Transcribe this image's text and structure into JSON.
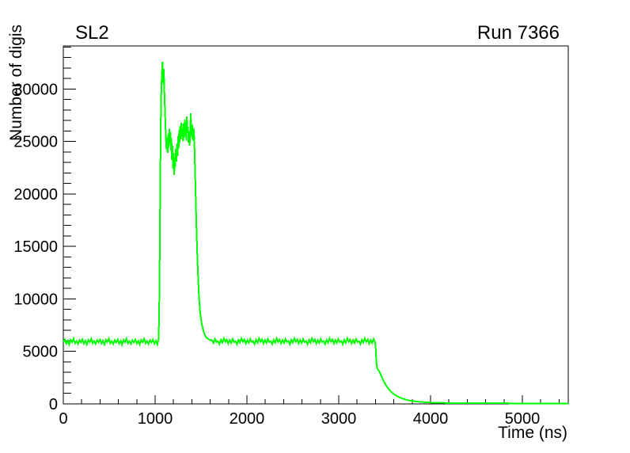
{
  "chart_data": {
    "type": "line",
    "title": "SL2",
    "annotation": "Run 7366",
    "xlabel": "Time (ns)",
    "ylabel": "Number of digis",
    "xlim": [
      0,
      5500
    ],
    "ylim": [
      0,
      34100
    ],
    "x_major_ticks": [
      0,
      1000,
      2000,
      3000,
      4000,
      5000
    ],
    "x_minor_step": 200,
    "y_major_ticks": [
      0,
      5000,
      10000,
      15000,
      20000,
      25000,
      30000
    ],
    "y_minor_step": 1000,
    "grid": false,
    "legend": "none",
    "frame_box": true,
    "line_color": "#00ff00",
    "line_width": 2,
    "axis_color": "#000000",
    "background_color": "#ffffff",
    "series_name": "number-of-digis-vs-time",
    "baseline_level": 5950,
    "peak_value": 32600,
    "segments": [
      {
        "kind": "noise",
        "t_start": 0,
        "t_end": 1032,
        "step": 16,
        "level": 5950,
        "amp": 300,
        "pattern": [
          -0.3,
          0.6,
          -0.7,
          0.2,
          -1.0,
          0.5,
          -0.2,
          0.9,
          -0.6,
          0.1,
          -0.8,
          0.4
        ]
      },
      {
        "kind": "points",
        "points": [
          [
            1038,
            6200
          ],
          [
            1044,
            8500
          ],
          [
            1050,
            14000
          ],
          [
            1056,
            21000
          ],
          [
            1062,
            27000
          ],
          [
            1068,
            30200
          ],
          [
            1074,
            31500
          ],
          [
            1080,
            32600
          ],
          [
            1085,
            31200
          ],
          [
            1090,
            30400
          ],
          [
            1095,
            31900
          ],
          [
            1100,
            30000
          ],
          [
            1106,
            28300
          ],
          [
            1112,
            26700
          ],
          [
            1118,
            25100
          ],
          [
            1124,
            24200
          ],
          [
            1130,
            25400
          ],
          [
            1136,
            23900
          ],
          [
            1142,
            25700
          ],
          [
            1148,
            24400
          ],
          [
            1154,
            26200
          ],
          [
            1160,
            24800
          ],
          [
            1166,
            25900
          ],
          [
            1172,
            24100
          ],
          [
            1178,
            25300
          ],
          [
            1184,
            23200
          ],
          [
            1190,
            24600
          ],
          [
            1196,
            22400
          ],
          [
            1202,
            23900
          ],
          [
            1208,
            21800
          ],
          [
            1214,
            23500
          ],
          [
            1220,
            22600
          ],
          [
            1226,
            24300
          ],
          [
            1232,
            23100
          ],
          [
            1238,
            24800
          ],
          [
            1244,
            23600
          ],
          [
            1250,
            25500
          ],
          [
            1256,
            24300
          ],
          [
            1262,
            26100
          ],
          [
            1268,
            24900
          ],
          [
            1274,
            26500
          ],
          [
            1280,
            25200
          ],
          [
            1286,
            26800
          ],
          [
            1292,
            25500
          ],
          [
            1298,
            26300
          ],
          [
            1304,
            25000
          ],
          [
            1310,
            26700
          ],
          [
            1316,
            25300
          ],
          [
            1322,
            27100
          ],
          [
            1328,
            25600
          ],
          [
            1334,
            26900
          ],
          [
            1340,
            25100
          ],
          [
            1346,
            27400
          ],
          [
            1352,
            25800
          ],
          [
            1358,
            26400
          ],
          [
            1364,
            24900
          ],
          [
            1370,
            26000
          ],
          [
            1376,
            24600
          ],
          [
            1382,
            25700
          ],
          [
            1388,
            27700
          ],
          [
            1394,
            26200
          ],
          [
            1400,
            25400
          ],
          [
            1406,
            26600
          ],
          [
            1412,
            25100
          ],
          [
            1418,
            26300
          ],
          [
            1424,
            25700
          ]
        ]
      },
      {
        "kind": "points",
        "points": [
          [
            1430,
            24000
          ],
          [
            1436,
            21800
          ],
          [
            1442,
            19600
          ],
          [
            1448,
            17500
          ],
          [
            1454,
            15600
          ],
          [
            1460,
            13900
          ],
          [
            1466,
            12500
          ],
          [
            1472,
            11300
          ],
          [
            1478,
            10300
          ],
          [
            1484,
            9500
          ],
          [
            1490,
            8800
          ],
          [
            1498,
            8200
          ],
          [
            1506,
            7700
          ],
          [
            1516,
            7300
          ],
          [
            1526,
            6950
          ],
          [
            1538,
            6650
          ],
          [
            1552,
            6400
          ],
          [
            1568,
            6250
          ],
          [
            1586,
            6150
          ],
          [
            1604,
            6050
          ]
        ]
      },
      {
        "kind": "noise",
        "t_start": 1620,
        "t_end": 3396,
        "step": 16,
        "level": 5950,
        "amp": 300,
        "pattern": [
          0.4,
          -0.5,
          0.8,
          -0.2,
          0.1,
          -0.9,
          0.5,
          -0.4,
          1.0,
          -0.1,
          0.6,
          -0.7
        ]
      },
      {
        "kind": "points",
        "points": [
          [
            3402,
            5500
          ],
          [
            3406,
            4700
          ],
          [
            3410,
            4000
          ],
          [
            3415,
            3550
          ],
          [
            3421,
            3350
          ],
          [
            3428,
            3250
          ],
          [
            3436,
            3150
          ],
          [
            3444,
            3050
          ],
          [
            3452,
            2900
          ],
          [
            3462,
            2700
          ],
          [
            3472,
            2500
          ],
          [
            3484,
            2280
          ],
          [
            3496,
            2060
          ],
          [
            3510,
            1840
          ],
          [
            3526,
            1620
          ],
          [
            3544,
            1410
          ],
          [
            3564,
            1210
          ],
          [
            3586,
            1030
          ],
          [
            3610,
            870
          ],
          [
            3636,
            730
          ],
          [
            3664,
            610
          ],
          [
            3694,
            510
          ],
          [
            3726,
            420
          ],
          [
            3760,
            350
          ],
          [
            3796,
            290
          ],
          [
            3834,
            240
          ],
          [
            3874,
            200
          ],
          [
            3916,
            170
          ],
          [
            3960,
            145
          ],
          [
            4010,
            125
          ],
          [
            4070,
            108
          ],
          [
            4140,
            95
          ],
          [
            4220,
            85
          ],
          [
            4310,
            78
          ],
          [
            4410,
            72
          ],
          [
            4520,
            66
          ],
          [
            4640,
            62
          ],
          [
            4770,
            58
          ],
          [
            4910,
            55
          ],
          [
            5060,
            52
          ],
          [
            5220,
            50
          ],
          [
            5390,
            48
          ],
          [
            5500,
            47
          ]
        ]
      }
    ]
  }
}
